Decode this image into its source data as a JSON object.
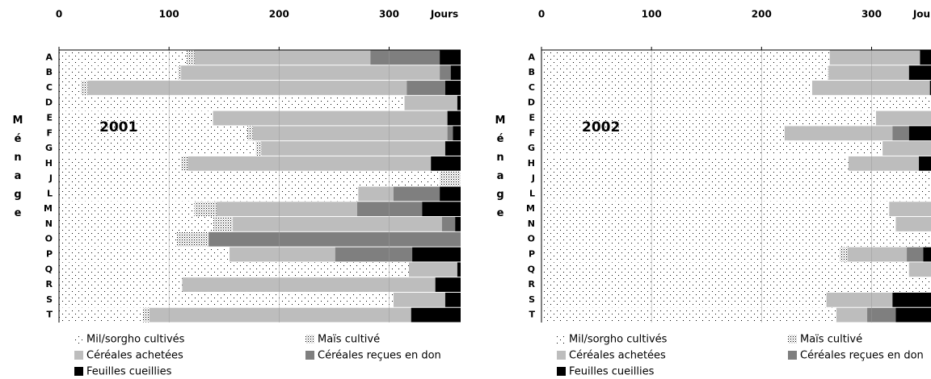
{
  "chart_data": [
    {
      "type": "bar",
      "orientation": "horizontal",
      "title": "2001",
      "x_label": "Jours",
      "y_label": "Ménage",
      "categories": [
        "A",
        "B",
        "C",
        "D",
        "E",
        "F",
        "G",
        "H",
        "J",
        "L",
        "M",
        "N",
        "O",
        "P",
        "Q",
        "R",
        "S",
        "T"
      ],
      "xlim": [
        0,
        365
      ],
      "xticks": [
        0,
        100,
        200,
        300
      ],
      "grid": true,
      "series": [
        {
          "name": "Mil/sorgho cultivés",
          "color": "#000000",
          "pattern": "sparse-dots",
          "values": [
            116,
            108,
            20,
            314,
            140,
            171,
            179,
            111,
            346,
            272,
            123,
            140,
            107,
            155,
            318,
            112,
            304,
            76
          ]
        },
        {
          "name": "Maïs cultivé",
          "color": "#000000",
          "pattern": "dense-dots",
          "values": [
            7,
            3,
            6,
            0,
            0,
            5,
            5,
            6,
            19,
            0,
            20,
            18,
            29,
            0,
            0,
            0,
            0,
            6
          ]
        },
        {
          "name": "Céréales achetées",
          "color": "#bdbdbd",
          "values": [
            160,
            235,
            290,
            48,
            213,
            177,
            167,
            221,
            0,
            32,
            128,
            190,
            0,
            96,
            44,
            230,
            47,
            238
          ]
        },
        {
          "name": "Céréales reçues en don",
          "color": "#7f7f7f",
          "values": [
            63,
            10,
            35,
            0,
            0,
            5,
            0,
            0,
            0,
            42,
            59,
            12,
            229,
            70,
            0,
            0,
            0,
            0
          ]
        },
        {
          "name": "Feuilles cueillies",
          "color": "#000000",
          "values": [
            19,
            9,
            14,
            3,
            12,
            7,
            14,
            27,
            0,
            19,
            35,
            5,
            0,
            44,
            3,
            23,
            14,
            45
          ]
        }
      ]
    },
    {
      "type": "bar",
      "orientation": "horizontal",
      "title": "2002",
      "x_label": "Jours",
      "y_label": "Ménage",
      "categories": [
        "A",
        "B",
        "C",
        "D",
        "E",
        "F",
        "G",
        "H",
        "J",
        "L",
        "M",
        "N",
        "O",
        "P",
        "Q",
        "R",
        "S",
        "T"
      ],
      "xlim": [
        0,
        365
      ],
      "xticks": [
        0,
        100,
        200,
        300
      ],
      "grid": true,
      "series": [
        {
          "name": "Mil/sorgho cultivés",
          "color": "#000000",
          "pattern": "sparse-dots",
          "values": [
            262,
            260,
            246,
            365,
            304,
            221,
            310,
            279,
            365,
            365,
            316,
            322,
            365,
            271,
            334,
            365,
            259,
            268
          ]
        },
        {
          "name": "Maïs cultivé",
          "color": "#000000",
          "pattern": "dense-dots",
          "values": [
            0,
            1,
            0,
            0,
            0,
            0,
            0,
            0,
            0,
            0,
            0,
            0,
            0,
            7,
            0,
            0,
            0,
            0
          ]
        },
        {
          "name": "Céréales achetées",
          "color": "#bdbdbd",
          "values": [
            82,
            73,
            107,
            0,
            61,
            98,
            55,
            64,
            0,
            0,
            49,
            43,
            0,
            54,
            31,
            0,
            60,
            28
          ]
        },
        {
          "name": "Céréales reçues en don",
          "color": "#7f7f7f",
          "values": [
            0,
            0,
            0,
            0,
            0,
            15,
            0,
            0,
            0,
            0,
            0,
            0,
            0,
            15,
            0,
            0,
            0,
            26
          ]
        },
        {
          "name": "Feuilles cueillies",
          "color": "#000000",
          "values": [
            21,
            31,
            12,
            0,
            0,
            31,
            0,
            22,
            0,
            0,
            0,
            0,
            0,
            18,
            0,
            0,
            46,
            43
          ]
        }
      ]
    }
  ]
}
